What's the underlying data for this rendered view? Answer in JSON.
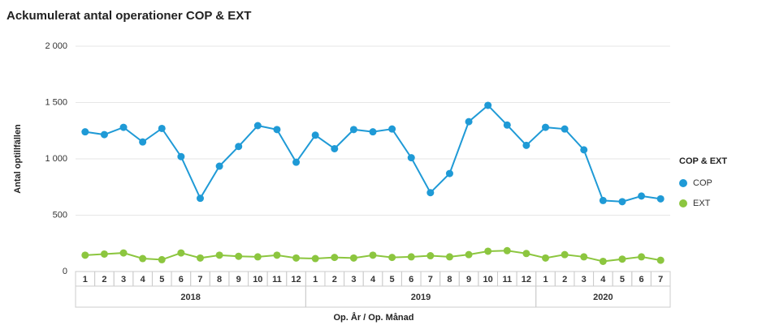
{
  "chart_data": {
    "type": "line",
    "title": "Ackumulerat antal operationer COP & EXT",
    "y_label": "Antal optillfällen",
    "x_label": "Op. År / Op. Månad",
    "legend_title": "COP & EXT",
    "legend": "right",
    "grid": true,
    "categories": [
      "1",
      "2",
      "3",
      "4",
      "5",
      "6",
      "7",
      "8",
      "9",
      "10",
      "11",
      "12",
      "1",
      "2",
      "3",
      "4",
      "5",
      "6",
      "7",
      "8",
      "9",
      "10",
      "11",
      "12",
      "1",
      "2",
      "3",
      "4",
      "5",
      "6",
      "7"
    ],
    "groups": [
      {
        "label": "2018",
        "span": 12
      },
      {
        "label": "2019",
        "span": 12
      },
      {
        "label": "2020",
        "span": 7
      }
    ],
    "ylim": [
      0,
      2000
    ],
    "yticks": [
      0,
      500,
      {
        "value": 1000,
        "label": "1 000"
      },
      {
        "value": 1500,
        "label": "1 500"
      },
      {
        "value": 2000,
        "label": "2 000"
      }
    ],
    "series": [
      {
        "name": "COP",
        "color": "#1f9ad6",
        "values": [
          1240,
          1215,
          1280,
          1150,
          1270,
          1020,
          650,
          935,
          1110,
          1295,
          1260,
          970,
          1210,
          1090,
          1260,
          1240,
          1265,
          1010,
          700,
          870,
          1330,
          1475,
          1300,
          1120,
          1280,
          1265,
          1080,
          630,
          620,
          670,
          645
        ]
      },
      {
        "name": "EXT",
        "color": "#8cc63f",
        "values": [
          145,
          155,
          165,
          115,
          105,
          165,
          120,
          145,
          135,
          130,
          145,
          120,
          115,
          125,
          120,
          145,
          125,
          130,
          140,
          130,
          150,
          180,
          185,
          160,
          120,
          150,
          130,
          90,
          110,
          130,
          100
        ]
      }
    ]
  }
}
